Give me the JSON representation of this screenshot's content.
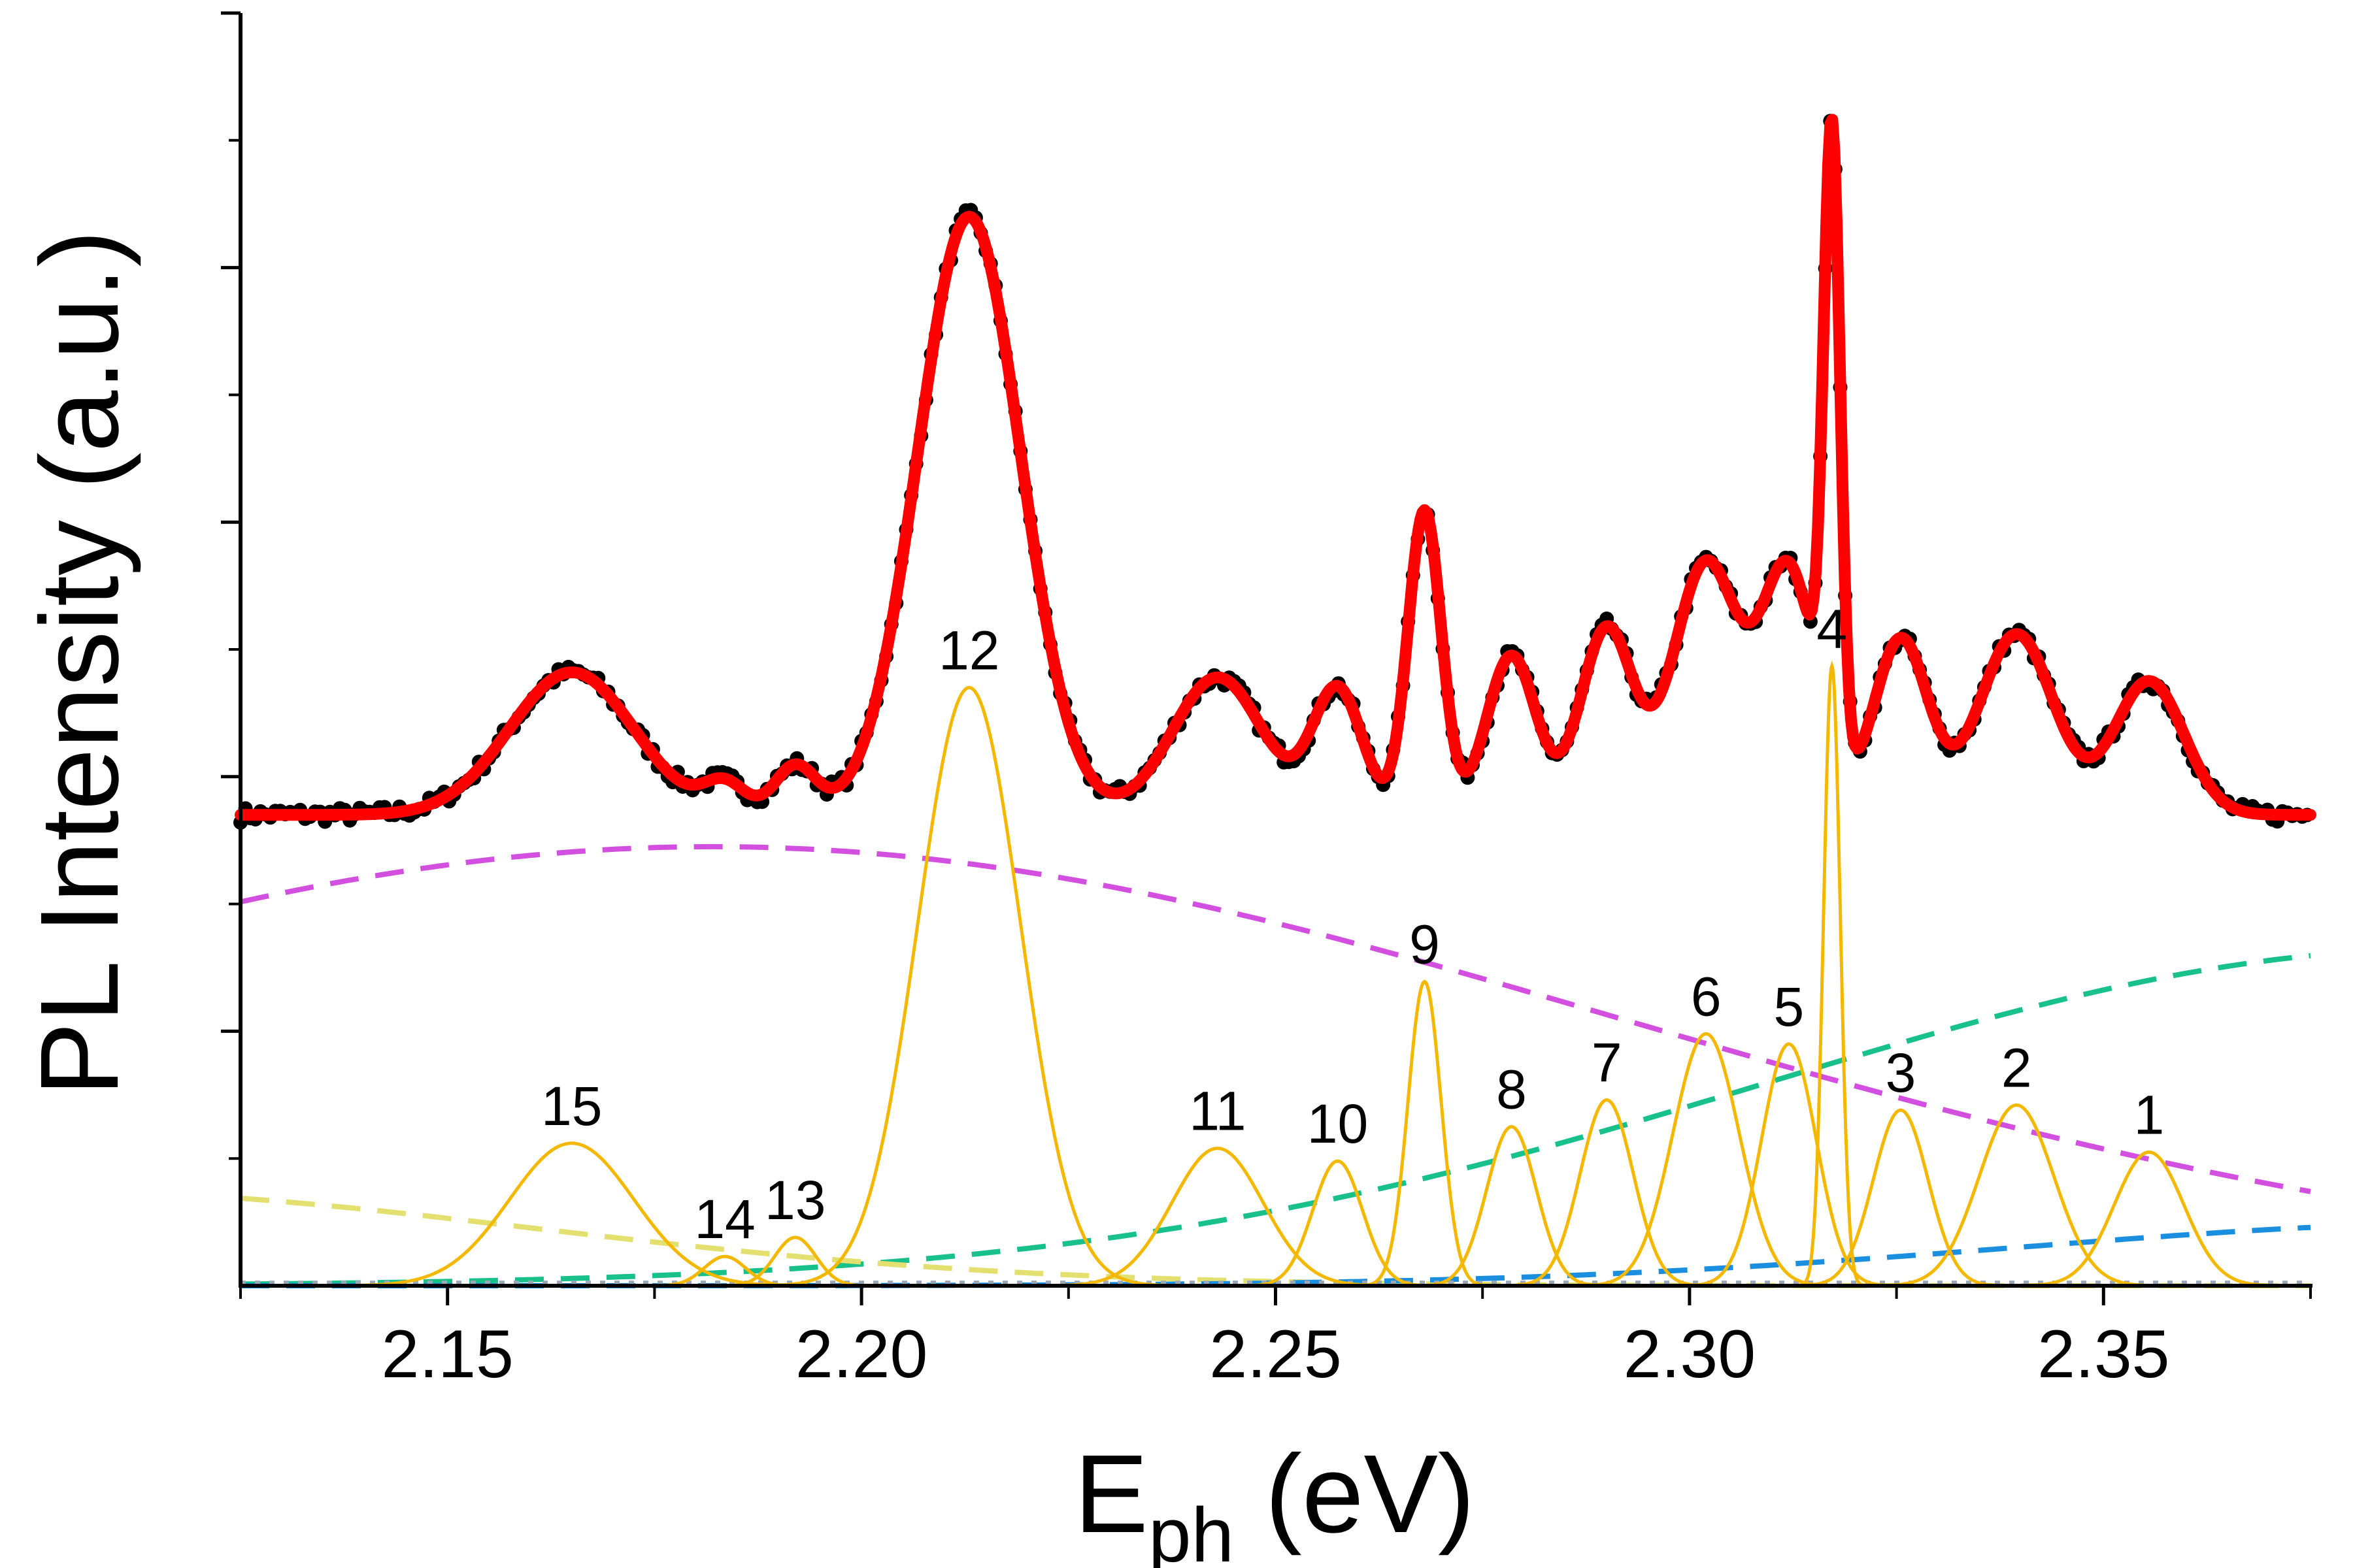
{
  "chart_data": {
    "type": "line",
    "title": "",
    "xlabel": {
      "main": "E",
      "subscript": "ph",
      "unit": " (eV)"
    },
    "ylabel": "PL Intensity (a.u.)",
    "xlim": [
      2.125,
      2.375
    ],
    "ylim": [
      0,
      1.0
    ],
    "x_ticks": [
      {
        "value": 2.15,
        "label": "2.15"
      },
      {
        "value": 2.2,
        "label": "2.20"
      },
      {
        "value": 2.25,
        "label": "2.25"
      },
      {
        "value": 2.3,
        "label": "2.30"
      },
      {
        "value": 2.35,
        "label": "2.35"
      }
    ],
    "x_minor_ticks": [
      2.125,
      2.175,
      2.225,
      2.275,
      2.325,
      2.375
    ],
    "y_tick_count": 10,
    "colors": {
      "data_points": "#000000",
      "fit": "#ff0000",
      "peaks": "#f5b800",
      "background_magenta": "#d24fe0",
      "background_green": "#18c08a",
      "background_yellow": "#e4e070",
      "background_blue": "#1a8fe0",
      "background_gray": "#9aa8b8"
    },
    "peaks": [
      {
        "label": "1",
        "center": 2.3555,
        "amplitude": 0.105,
        "sigma": 0.0042
      },
      {
        "label": "2",
        "center": 2.3395,
        "amplitude": 0.142,
        "sigma": 0.0045
      },
      {
        "label": "3",
        "center": 2.3255,
        "amplitude": 0.138,
        "sigma": 0.0033
      },
      {
        "label": "4",
        "center": 2.3172,
        "amplitude": 0.487,
        "sigma": 0.001
      },
      {
        "label": "5",
        "center": 2.312,
        "amplitude": 0.19,
        "sigma": 0.0033
      },
      {
        "label": "6",
        "center": 2.302,
        "amplitude": 0.198,
        "sigma": 0.004
      },
      {
        "label": "7",
        "center": 2.29,
        "amplitude": 0.146,
        "sigma": 0.0032
      },
      {
        "label": "8",
        "center": 2.2785,
        "amplitude": 0.125,
        "sigma": 0.003
      },
      {
        "label": "9",
        "center": 2.268,
        "amplitude": 0.239,
        "sigma": 0.002
      },
      {
        "label": "10",
        "center": 2.2575,
        "amplitude": 0.098,
        "sigma": 0.003
      },
      {
        "label": "11",
        "center": 2.243,
        "amplitude": 0.108,
        "sigma": 0.0055
      },
      {
        "label": "12",
        "center": 2.213,
        "amplitude": 0.47,
        "sigma": 0.0062
      },
      {
        "label": "13",
        "center": 2.192,
        "amplitude": 0.038,
        "sigma": 0.0025
      },
      {
        "label": "14",
        "center": 2.1835,
        "amplitude": 0.023,
        "sigma": 0.0025
      },
      {
        "label": "15",
        "center": 2.165,
        "amplitude": 0.112,
        "sigma": 0.0075
      }
    ],
    "backgrounds": [
      {
        "name": "magenta-background",
        "color": "#d24fe0",
        "center": 2.182,
        "amplitude": 0.345,
        "sigma": 0.11,
        "offset": 0
      },
      {
        "name": "green-background",
        "color": "#18c08a",
        "center": 2.392,
        "amplitude": 0.265,
        "sigma": 0.082,
        "offset": 0
      },
      {
        "name": "yellow-background",
        "color": "#e4e070",
        "center": 2.1,
        "amplitude": 0.075,
        "sigma": 0.06,
        "offset": 0
      },
      {
        "name": "blue-background",
        "color": "#1a8fe0",
        "center": 2.4,
        "amplitude": 0.05,
        "sigma": 0.06,
        "offset": 0
      },
      {
        "name": "gray-baseline",
        "color": "#9aa8b8",
        "center": 2.25,
        "amplitude": 0,
        "sigma": 1,
        "offset": 0.002
      }
    ],
    "fit_sample_step": 0.00025,
    "data_point_step": 0.0006
  }
}
